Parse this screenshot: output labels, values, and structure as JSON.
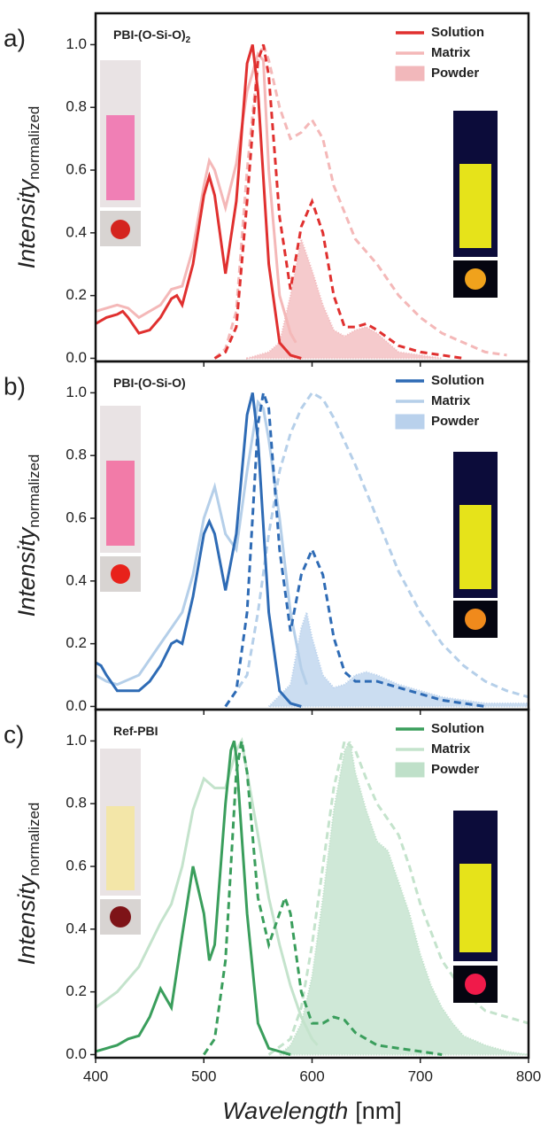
{
  "chart_data": [
    {
      "type": "line",
      "panel_label": "a)",
      "title": "PBI-(O-Si-O)",
      "title_sub": "2",
      "y_label": "Intensity",
      "y_label_sub": "normalized",
      "xlim": [
        400,
        800
      ],
      "xticks": [
        400,
        500,
        600,
        700,
        800
      ],
      "show_xtick_labels": false,
      "ylim": [
        -0.01,
        1.1
      ],
      "yticks": [
        {
          "value": 0,
          "label": "0.0"
        },
        0.2,
        0.4,
        0.6,
        0.8,
        {
          "value": 1,
          "label": "1.0"
        }
      ],
      "legend": "top-right",
      "series": [
        {
          "name": "Solution",
          "color": "#e0302f",
          "absorption": {
            "x": [
              400,
              410,
              420,
              425,
              430,
              440,
              450,
              460,
              470,
              475,
              480,
              490,
              500,
              505,
              510,
              520,
              530,
              540,
              545,
              550,
              560,
              570,
              580,
              590
            ],
            "values": [
              0.11,
              0.13,
              0.14,
              0.15,
              0.13,
              0.08,
              0.09,
              0.13,
              0.19,
              0.2,
              0.17,
              0.3,
              0.52,
              0.58,
              0.52,
              0.27,
              0.5,
              0.94,
              1.0,
              0.85,
              0.3,
              0.05,
              0.01,
              0
            ]
          },
          "emission": {
            "x": [
              510,
              520,
              530,
              540,
              550,
              555,
              560,
              570,
              580,
              590,
              600,
              610,
              620,
              630,
              640,
              650,
              660,
              680,
              700,
              720,
              740
            ],
            "values": [
              0,
              0.02,
              0.1,
              0.5,
              0.95,
              1.0,
              0.9,
              0.45,
              0.22,
              0.42,
              0.5,
              0.4,
              0.2,
              0.1,
              0.1,
              0.11,
              0.09,
              0.04,
              0.02,
              0.01,
              0
            ]
          }
        },
        {
          "name": "Matrix",
          "color": "#f4b8b8",
          "absorption": {
            "x": [
              400,
              420,
              430,
              440,
              460,
              470,
              480,
              490,
              500,
              505,
              510,
              520,
              530,
              540,
              550,
              555,
              560,
              570,
              580,
              585
            ],
            "values": [
              0.15,
              0.17,
              0.16,
              0.13,
              0.17,
              0.22,
              0.23,
              0.35,
              0.55,
              0.63,
              0.6,
              0.48,
              0.62,
              0.85,
              0.97,
              0.95,
              0.6,
              0.2,
              0.08,
              0.05
            ]
          },
          "emission": {
            "x": [
              510,
              520,
              530,
              540,
              550,
              555,
              560,
              570,
              580,
              590,
              600,
              610,
              620,
              640,
              660,
              680,
              700,
              720,
              740,
              760,
              780
            ],
            "values": [
              0,
              0.03,
              0.15,
              0.6,
              0.95,
              1.0,
              0.95,
              0.8,
              0.7,
              0.72,
              0.76,
              0.7,
              0.55,
              0.38,
              0.3,
              0.2,
              0.13,
              0.08,
              0.05,
              0.02,
              0.01
            ]
          }
        },
        {
          "name": "Powder",
          "color": "#f2b8bb",
          "kind": "area",
          "x": [
            540,
            560,
            570,
            580,
            590,
            595,
            600,
            610,
            620,
            630,
            640,
            650,
            660,
            680,
            700,
            720
          ],
          "values": [
            0,
            0.02,
            0.05,
            0.2,
            0.38,
            0.33,
            0.28,
            0.17,
            0.09,
            0.07,
            0.09,
            0.1,
            0.08,
            0.02,
            0.01,
            0
          ]
        }
      ]
    },
    {
      "type": "line",
      "panel_label": "b)",
      "title": "PBI-(O-Si-O)",
      "y_label": "Intensity",
      "y_label_sub": "normalized",
      "xlim": [
        400,
        800
      ],
      "xticks": [
        400,
        500,
        600,
        700,
        800
      ],
      "show_xtick_labels": false,
      "ylim": [
        -0.01,
        1.1
      ],
      "yticks": [
        {
          "value": 0,
          "label": "0.0"
        },
        0.2,
        0.4,
        0.6,
        0.8,
        {
          "value": 1,
          "label": "1.0"
        }
      ],
      "legend": "top-right",
      "series": [
        {
          "name": "Solution",
          "color": "#2e6bb5",
          "absorption": {
            "x": [
              400,
              405,
              410,
              420,
              440,
              450,
              460,
              470,
              475,
              480,
              490,
              500,
              505,
              510,
              520,
              530,
              540,
              545,
              550,
              560,
              570,
              580,
              590
            ],
            "values": [
              0.14,
              0.13,
              0.1,
              0.05,
              0.05,
              0.08,
              0.13,
              0.2,
              0.21,
              0.2,
              0.35,
              0.55,
              0.59,
              0.55,
              0.37,
              0.55,
              0.93,
              1.0,
              0.85,
              0.3,
              0.05,
              0.01,
              0
            ]
          },
          "emission": {
            "x": [
              520,
              530,
              540,
              550,
              555,
              560,
              570,
              580,
              590,
              600,
              610,
              620,
              630,
              640,
              660,
              680,
              700,
              720,
              740,
              760
            ],
            "values": [
              0,
              0.05,
              0.3,
              0.9,
              1.0,
              0.95,
              0.5,
              0.24,
              0.42,
              0.5,
              0.42,
              0.22,
              0.11,
              0.08,
              0.08,
              0.06,
              0.04,
              0.02,
              0.01,
              0
            ]
          }
        },
        {
          "name": "Matrix",
          "color": "#b5cfe9",
          "absorption": {
            "x": [
              400,
              410,
              420,
              440,
              460,
              470,
              480,
              490,
              500,
              510,
              520,
              530,
              540,
              550,
              555,
              560,
              570,
              580,
              590,
              595
            ],
            "values": [
              0.1,
              0.08,
              0.07,
              0.1,
              0.2,
              0.25,
              0.3,
              0.42,
              0.6,
              0.7,
              0.55,
              0.5,
              0.75,
              0.97,
              0.95,
              0.85,
              0.6,
              0.3,
              0.12,
              0.07
            ]
          },
          "emission": {
            "x": [
              520,
              540,
              550,
              560,
              570,
              580,
              590,
              600,
              610,
              620,
              640,
              660,
              680,
              700,
              720,
              740,
              760,
              780,
              800
            ],
            "values": [
              0,
              0.1,
              0.3,
              0.55,
              0.75,
              0.87,
              0.95,
              1.0,
              0.98,
              0.92,
              0.77,
              0.6,
              0.43,
              0.3,
              0.2,
              0.13,
              0.08,
              0.05,
              0.03
            ]
          }
        },
        {
          "name": "Powder",
          "color": "#b9d1ec",
          "kind": "area",
          "x": [
            560,
            580,
            590,
            595,
            600,
            610,
            620,
            630,
            640,
            650,
            660,
            680,
            700,
            720,
            740,
            760,
            780,
            800
          ],
          "values": [
            0,
            0.07,
            0.25,
            0.3,
            0.22,
            0.1,
            0.06,
            0.07,
            0.1,
            0.11,
            0.1,
            0.07,
            0.05,
            0.03,
            0.02,
            0.01,
            0.01,
            0.01
          ]
        }
      ]
    },
    {
      "type": "line",
      "panel_label": "c)",
      "title": "Ref-PBI",
      "y_label": "Intensity",
      "y_label_sub": "normalized",
      "x_label": "Wavelength",
      "x_label_unit": "[nm]",
      "xlim": [
        400,
        800
      ],
      "xticks": [
        400,
        500,
        600,
        700,
        800
      ],
      "show_xtick_labels": true,
      "ylim": [
        -0.01,
        1.1
      ],
      "yticks": [
        {
          "value": 0,
          "label": "0.0"
        },
        0.2,
        0.4,
        0.6,
        0.8,
        {
          "value": 1,
          "label": "1.0"
        }
      ],
      "legend": "top-right",
      "series": [
        {
          "name": "Solution",
          "color": "#3a9e5c",
          "absorption": {
            "x": [
              400,
              410,
              420,
              430,
              440,
              450,
              460,
              470,
              480,
              490,
              500,
              505,
              510,
              520,
              525,
              528,
              530,
              540,
              550,
              560,
              570,
              580
            ],
            "values": [
              0.01,
              0.02,
              0.03,
              0.05,
              0.06,
              0.12,
              0.21,
              0.15,
              0.38,
              0.6,
              0.45,
              0.3,
              0.35,
              0.8,
              0.97,
              1.0,
              0.95,
              0.45,
              0.1,
              0.02,
              0.01,
              0
            ]
          },
          "emission": {
            "x": [
              500,
              510,
              520,
              530,
              535,
              540,
              550,
              560,
              570,
              575,
              580,
              590,
              600,
              610,
              620,
              630,
              640,
              660,
              680,
              700,
              720
            ],
            "values": [
              0,
              0.05,
              0.3,
              0.9,
              1.0,
              0.9,
              0.5,
              0.35,
              0.45,
              0.5,
              0.45,
              0.2,
              0.1,
              0.1,
              0.12,
              0.11,
              0.07,
              0.03,
              0.02,
              0.01,
              0
            ]
          }
        },
        {
          "name": "Matrix",
          "color": "#c4e3cc",
          "absorption": {
            "x": [
              400,
              420,
              440,
              460,
              470,
              480,
              490,
              500,
              510,
              520,
              530,
              535,
              540,
              550,
              560,
              570,
              580,
              590,
              600,
              605
            ],
            "values": [
              0.15,
              0.2,
              0.28,
              0.42,
              0.48,
              0.6,
              0.78,
              0.88,
              0.85,
              0.85,
              0.97,
              1.0,
              0.9,
              0.7,
              0.5,
              0.35,
              0.22,
              0.12,
              0.05,
              0.03
            ]
          },
          "emission": {
            "x": [
              560,
              580,
              590,
              600,
              610,
              620,
              630,
              640,
              650,
              660,
              670,
              680,
              690,
              700,
              720,
              740,
              760,
              780,
              800
            ],
            "values": [
              0,
              0.05,
              0.15,
              0.35,
              0.6,
              0.85,
              1.0,
              0.97,
              0.88,
              0.8,
              0.75,
              0.7,
              0.6,
              0.48,
              0.3,
              0.2,
              0.14,
              0.12,
              0.1
            ]
          }
        },
        {
          "name": "Powder",
          "color": "#bfe0c9",
          "kind": "area",
          "x": [
            570,
            580,
            590,
            600,
            610,
            620,
            630,
            635,
            640,
            650,
            660,
            670,
            680,
            690,
            700,
            710,
            720,
            730,
            740,
            760,
            780,
            800
          ],
          "values": [
            0,
            0.03,
            0.1,
            0.25,
            0.5,
            0.78,
            0.97,
            1.0,
            0.9,
            0.78,
            0.68,
            0.65,
            0.55,
            0.45,
            0.32,
            0.22,
            0.15,
            0.1,
            0.06,
            0.03,
            0.01,
            0
          ]
        }
      ]
    }
  ]
}
